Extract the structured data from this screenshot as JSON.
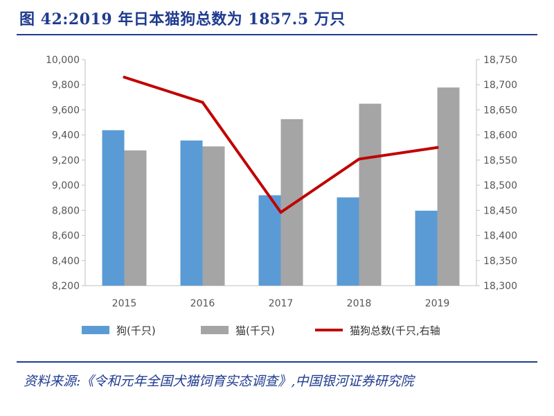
{
  "header": {
    "title": "图 42:2019 年日本猫狗总数为 1857.5 万只"
  },
  "source": {
    "text": "资料来源:《令和元年全国犬猫饲育实态调查》,中国银河证券研究院"
  },
  "colors": {
    "title": "#1f3b8f",
    "dog": "#5b9bd5",
    "cat": "#a5a5a5",
    "total": "#c00000",
    "axis": "#bfbfbf"
  },
  "chart_data": {
    "type": "bar",
    "categories": [
      "2015",
      "2016",
      "2017",
      "2018",
      "2019"
    ],
    "series": [
      {
        "name": "狗(千只)",
        "type": "bar",
        "axis": "left",
        "color": "#5b9bd5",
        "values": [
          9438,
          9356,
          8920,
          8903,
          8797
        ]
      },
      {
        "name": "猫(千只)",
        "type": "bar",
        "axis": "left",
        "color": "#a5a5a5",
        "values": [
          9277,
          9309,
          9526,
          9649,
          9778
        ]
      },
      {
        "name": "猫狗总数(千只,右轴",
        "type": "line",
        "axis": "right",
        "color": "#c00000",
        "values": [
          18715,
          18665,
          18446,
          18552,
          18575
        ]
      }
    ],
    "left_axis": {
      "ylim": [
        8200,
        10000
      ],
      "ticks": [
        "8,200",
        "8,400",
        "8,600",
        "8,800",
        "9,000",
        "9,200",
        "9,400",
        "9,600",
        "9,800",
        "10,000"
      ]
    },
    "right_axis": {
      "ylim": [
        18300,
        18750
      ],
      "ticks": [
        "18,300",
        "18,350",
        "18,400",
        "18,450",
        "18,500",
        "18,550",
        "18,600",
        "18,650",
        "18,700",
        "18,750"
      ]
    },
    "grid": false,
    "legend_position": "bottom"
  }
}
